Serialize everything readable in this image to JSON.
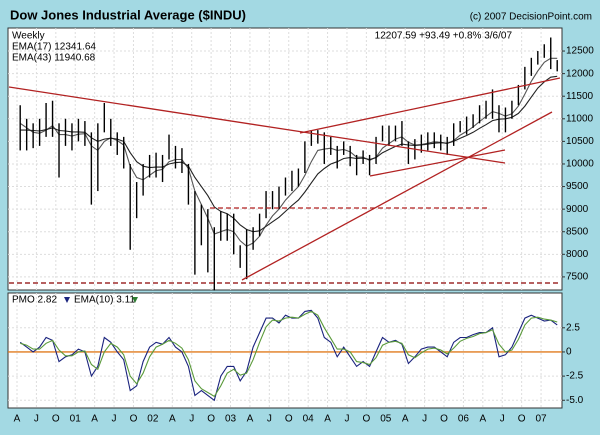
{
  "chart_data": [
    {
      "type": "hilo",
      "title": "Dow Jones Industrial Average ($INDU)",
      "credit": "(c) 2007 DecisionPoint.com",
      "period": "Weekly",
      "quote": "12207.59 +93.49 +0.8% 3/6/07",
      "ylim": [
        7210,
        13010
      ],
      "yticks": [
        7500,
        8000,
        8500,
        9000,
        9500,
        10000,
        10500,
        11000,
        11500,
        12000,
        12500
      ],
      "grid": true,
      "price": {
        "color": "#000000",
        "high": [
          11300,
          11000,
          10900,
          11000,
          11350,
          11400,
          10900,
          11000,
          10900,
          11000,
          10950,
          10700,
          10900,
          11350,
          11000,
          10700,
          10600,
          10000,
          9600,
          10000,
          10200,
          10250,
          10200,
          10650,
          10400,
          10350,
          10000,
          9400,
          9100,
          9000,
          8600,
          8950,
          8900,
          8900,
          8200,
          8550,
          8600,
          8900,
          9400,
          9400,
          9500,
          9700,
          9850,
          9900,
          10500,
          10750,
          10750,
          10700,
          10600,
          10400,
          10500,
          10400,
          10200,
          10300,
          10200,
          10600,
          10850,
          10850,
          10850,
          10950,
          10500,
          10550,
          10650,
          10700,
          10700,
          10650,
          10600,
          10900,
          10950,
          11050,
          11100,
          11300,
          11400,
          11650,
          11300,
          11250,
          11400,
          11750,
          12150,
          12350,
          12500,
          12650,
          12800,
          12300
        ],
        "low": [
          10300,
          10300,
          10350,
          10400,
          10600,
          10600,
          9700,
          10400,
          10300,
          10500,
          10400,
          9100,
          9400,
          10700,
          10400,
          10200,
          9900,
          8100,
          8800,
          9300,
          9700,
          9700,
          9600,
          10100,
          9900,
          9800,
          9100,
          7550,
          8200,
          7600,
          7200,
          8300,
          8300,
          8000,
          7700,
          7450,
          8100,
          8400,
          8800,
          9000,
          9000,
          9300,
          9400,
          9500,
          9800,
          10400,
          10450,
          10000,
          10200,
          9900,
          10200,
          9950,
          9750,
          10000,
          9750,
          10000,
          10500,
          10400,
          10500,
          10400,
          10000,
          10100,
          10250,
          10300,
          10350,
          10300,
          10200,
          10400,
          10700,
          10650,
          10800,
          10900,
          11000,
          11000,
          10700,
          10700,
          11000,
          11300,
          11650,
          11950,
          12200,
          12350,
          12100,
          12050
        ]
      },
      "series": [
        {
          "name": "EMA(17) 12341.64",
          "color": "#555555",
          "values": [
            10900,
            10800,
            10700,
            10680,
            10750,
            10850,
            10650,
            10650,
            10620,
            10660,
            10670,
            10400,
            10300,
            10500,
            10580,
            10520,
            10420,
            9950,
            9700,
            9650,
            9750,
            9850,
            9880,
            10050,
            10100,
            10100,
            9900,
            9400,
            9100,
            8800,
            8450,
            8500,
            8550,
            8500,
            8300,
            8180,
            8250,
            8400,
            8650,
            8850,
            9000,
            9200,
            9350,
            9500,
            9750,
            10050,
            10300,
            10330,
            10350,
            10300,
            10320,
            10270,
            10150,
            10150,
            10080,
            10150,
            10350,
            10450,
            10550,
            10600,
            10480,
            10420,
            10430,
            10460,
            10490,
            10480,
            10450,
            10520,
            10640,
            10720,
            10820,
            10940,
            11050,
            11160,
            11120,
            11060,
            11110,
            11280,
            11550,
            11830,
            12060,
            12250,
            12340,
            12340
          ]
        },
        {
          "name": "EMA(43) 11940.68",
          "color": "#222222",
          "values": [
            10750,
            10750,
            10740,
            10730,
            10760,
            10800,
            10740,
            10730,
            10710,
            10710,
            10700,
            10580,
            10500,
            10550,
            10570,
            10550,
            10500,
            10250,
            10050,
            9950,
            9920,
            9930,
            9930,
            10000,
            10030,
            10040,
            9950,
            9700,
            9500,
            9300,
            9050,
            8950,
            8900,
            8800,
            8650,
            8550,
            8500,
            8520,
            8620,
            8720,
            8820,
            8950,
            9080,
            9200,
            9380,
            9580,
            9780,
            9900,
            10000,
            10050,
            10120,
            10140,
            10120,
            10130,
            10100,
            10140,
            10250,
            10320,
            10390,
            10440,
            10420,
            10410,
            10420,
            10440,
            10460,
            10470,
            10460,
            10500,
            10570,
            10630,
            10700,
            10790,
            10870,
            10960,
            10990,
            11000,
            11030,
            11120,
            11280,
            11480,
            11680,
            11820,
            11920,
            11940
          ]
        }
      ]
    },
    {
      "type": "line",
      "categories": [
        "A",
        null,
        null,
        "J",
        null,
        null,
        "O",
        null,
        null,
        "01",
        null,
        null,
        "A",
        null,
        null,
        "J",
        null,
        null,
        "O",
        null,
        null,
        "02",
        null,
        null,
        "A",
        null,
        null,
        "J",
        null,
        null,
        "O",
        null,
        null,
        "03",
        null,
        null,
        "A",
        null,
        null,
        "J",
        null,
        null,
        "O",
        null,
        null,
        "04",
        null,
        null,
        "A",
        null,
        null,
        "J",
        null,
        null,
        "O",
        null,
        null,
        "05",
        null,
        null,
        "A",
        null,
        null,
        "J",
        null,
        null,
        "O",
        null,
        null,
        "06",
        null,
        null,
        "A",
        null,
        null,
        "J",
        null,
        null,
        "O",
        null,
        null,
        "07",
        null,
        null
      ],
      "ylim": [
        -5.8,
        6.1
      ],
      "yticks": [
        2.5,
        0,
        -2.5,
        {
          "value": -5,
          "label": "-5.0"
        }
      ],
      "grid": true,
      "series": [
        {
          "name": "PMO 2.82",
          "color": "#1a237e",
          "values": [
            1.0,
            0.5,
            0,
            0.5,
            1.5,
            1.2,
            -1,
            -0.5,
            -0.3,
            0.3,
            0,
            -2.5,
            -1.5,
            1.5,
            1,
            0,
            -0.8,
            -4,
            -3.5,
            -1,
            0.5,
            1,
            0.8,
            1.5,
            0.5,
            0,
            -1.5,
            -4.5,
            -4,
            -4.5,
            -5,
            -2.5,
            -1.5,
            -1.5,
            -3,
            -2,
            0.5,
            2,
            3.5,
            3.5,
            3,
            3.8,
            3.5,
            3.5,
            4.2,
            4.3,
            3.5,
            1.5,
            1,
            -0.5,
            0.5,
            -0.5,
            -1.5,
            -1,
            -1.5,
            0,
            1.5,
            1,
            1.2,
            0.8,
            -1.2,
            -0.5,
            0.3,
            0.5,
            0.5,
            0,
            -0.5,
            1,
            1.5,
            1.5,
            1.8,
            2,
            2,
            2.5,
            -0.5,
            -0.3,
            0.5,
            2,
            3.5,
            3.8,
            3.5,
            3.2,
            3.3,
            2.8
          ]
        },
        {
          "name": "EMA(10) 3.11",
          "color": "#5a9a3a",
          "values": [
            0.9,
            0.7,
            0.3,
            0.3,
            0.9,
            1.2,
            0.2,
            -0.4,
            -0.4,
            0,
            0.1,
            -1.3,
            -1.8,
            0,
            0.9,
            0.5,
            -0.3,
            -2.5,
            -3.3,
            -2.2,
            -0.5,
            0.5,
            0.8,
            1.2,
            0.9,
            0.4,
            -0.8,
            -3,
            -3.8,
            -4.2,
            -4.6,
            -3.5,
            -2.2,
            -1.8,
            -2.4,
            -2.2,
            -0.8,
            1,
            2.6,
            3.3,
            3.2,
            3.5,
            3.6,
            3.5,
            3.9,
            4.2,
            3.8,
            2.5,
            1.4,
            0.3,
            0.3,
            0,
            -1,
            -1.1,
            -1.3,
            -0.6,
            0.7,
            1,
            1.1,
            0.9,
            -0.3,
            -0.6,
            -0.1,
            0.3,
            0.4,
            0.2,
            -0.2,
            0.4,
            1.1,
            1.4,
            1.6,
            1.9,
            2,
            2.3,
            0.8,
            0,
            0.2,
            1.3,
            2.8,
            3.5,
            3.6,
            3.4,
            3.3,
            3.1
          ]
        }
      ]
    }
  ]
}
